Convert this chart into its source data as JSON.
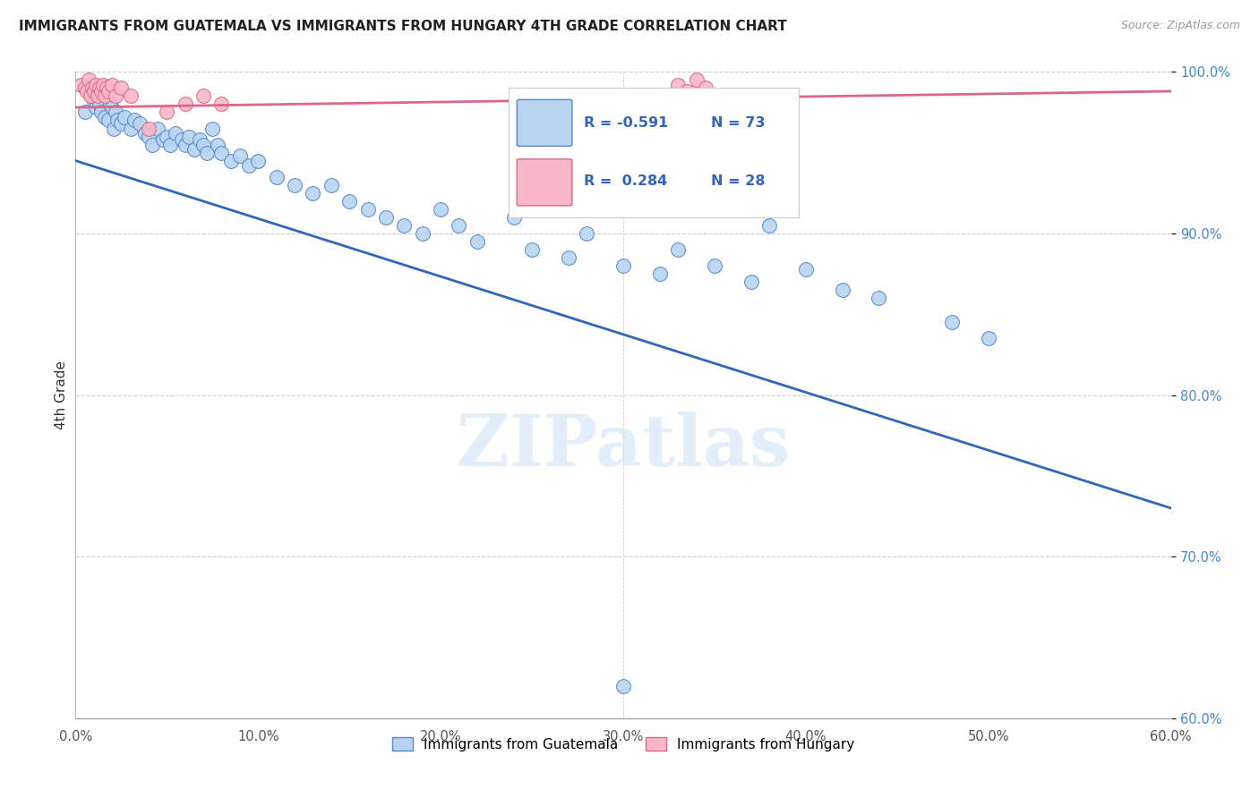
{
  "title": "IMMIGRANTS FROM GUATEMALA VS IMMIGRANTS FROM HUNGARY 4TH GRADE CORRELATION CHART",
  "source": "Source: ZipAtlas.com",
  "ylabel": "4th Grade",
  "xlim": [
    0.0,
    60.0
  ],
  "ylim": [
    60.0,
    100.0
  ],
  "xticks": [
    0.0,
    10.0,
    20.0,
    30.0,
    40.0,
    50.0,
    60.0
  ],
  "yticks": [
    60.0,
    70.0,
    80.0,
    90.0,
    100.0
  ],
  "blue_label": "Immigrants from Guatemala",
  "pink_label": "Immigrants from Hungary",
  "blue_R": -0.591,
  "blue_N": 73,
  "pink_R": 0.284,
  "pink_N": 28,
  "blue_color": "#b8d4f0",
  "blue_edge_color": "#5588cc",
  "blue_line_color": "#3366bb",
  "pink_color": "#f8b8c8",
  "pink_edge_color": "#dd6688",
  "pink_line_color": "#dd6688",
  "blue_line_x0": 0.0,
  "blue_line_y0": 94.5,
  "blue_line_x1": 60.0,
  "blue_line_y1": 73.0,
  "pink_line_x0": 0.0,
  "pink_line_y0": 97.8,
  "pink_line_x1": 60.0,
  "pink_line_y1": 98.8,
  "blue_dots": [
    [
      0.5,
      97.5
    ],
    [
      0.7,
      99.2
    ],
    [
      0.8,
      98.8
    ],
    [
      0.9,
      98.5
    ],
    [
      1.0,
      98.2
    ],
    [
      1.1,
      97.8
    ],
    [
      1.2,
      99.0
    ],
    [
      1.3,
      98.0
    ],
    [
      1.4,
      97.5
    ],
    [
      1.5,
      98.8
    ],
    [
      1.6,
      97.2
    ],
    [
      1.7,
      98.5
    ],
    [
      1.8,
      97.0
    ],
    [
      1.9,
      98.0
    ],
    [
      2.0,
      97.8
    ],
    [
      2.1,
      96.5
    ],
    [
      2.2,
      97.5
    ],
    [
      2.3,
      97.0
    ],
    [
      2.5,
      96.8
    ],
    [
      2.7,
      97.2
    ],
    [
      3.0,
      96.5
    ],
    [
      3.2,
      97.0
    ],
    [
      3.5,
      96.8
    ],
    [
      3.8,
      96.2
    ],
    [
      4.0,
      96.0
    ],
    [
      4.2,
      95.5
    ],
    [
      4.5,
      96.5
    ],
    [
      4.8,
      95.8
    ],
    [
      5.0,
      96.0
    ],
    [
      5.2,
      95.5
    ],
    [
      5.5,
      96.2
    ],
    [
      5.8,
      95.8
    ],
    [
      6.0,
      95.5
    ],
    [
      6.2,
      96.0
    ],
    [
      6.5,
      95.2
    ],
    [
      6.8,
      95.8
    ],
    [
      7.0,
      95.5
    ],
    [
      7.2,
      95.0
    ],
    [
      7.5,
      96.5
    ],
    [
      7.8,
      95.5
    ],
    [
      8.0,
      95.0
    ],
    [
      8.5,
      94.5
    ],
    [
      9.0,
      94.8
    ],
    [
      9.5,
      94.2
    ],
    [
      10.0,
      94.5
    ],
    [
      11.0,
      93.5
    ],
    [
      12.0,
      93.0
    ],
    [
      13.0,
      92.5
    ],
    [
      14.0,
      93.0
    ],
    [
      15.0,
      92.0
    ],
    [
      16.0,
      91.5
    ],
    [
      17.0,
      91.0
    ],
    [
      18.0,
      90.5
    ],
    [
      19.0,
      90.0
    ],
    [
      20.0,
      91.5
    ],
    [
      21.0,
      90.5
    ],
    [
      22.0,
      89.5
    ],
    [
      24.0,
      91.0
    ],
    [
      25.0,
      89.0
    ],
    [
      27.0,
      88.5
    ],
    [
      28.0,
      90.0
    ],
    [
      30.0,
      88.0
    ],
    [
      32.0,
      87.5
    ],
    [
      33.0,
      89.0
    ],
    [
      35.0,
      88.0
    ],
    [
      37.0,
      87.0
    ],
    [
      38.0,
      90.5
    ],
    [
      40.0,
      87.8
    ],
    [
      42.0,
      86.5
    ],
    [
      44.0,
      86.0
    ],
    [
      48.0,
      84.5
    ],
    [
      50.0,
      83.5
    ],
    [
      30.0,
      62.0
    ]
  ],
  "pink_dots": [
    [
      0.3,
      99.2
    ],
    [
      0.5,
      99.0
    ],
    [
      0.6,
      98.8
    ],
    [
      0.7,
      99.5
    ],
    [
      0.8,
      98.5
    ],
    [
      0.9,
      99.0
    ],
    [
      1.0,
      98.8
    ],
    [
      1.1,
      99.2
    ],
    [
      1.2,
      98.5
    ],
    [
      1.3,
      99.0
    ],
    [
      1.4,
      98.8
    ],
    [
      1.5,
      99.2
    ],
    [
      1.6,
      98.5
    ],
    [
      1.7,
      99.0
    ],
    [
      1.8,
      98.8
    ],
    [
      2.0,
      99.2
    ],
    [
      2.2,
      98.5
    ],
    [
      2.5,
      99.0
    ],
    [
      3.0,
      98.5
    ],
    [
      4.0,
      96.5
    ],
    [
      5.0,
      97.5
    ],
    [
      6.0,
      98.0
    ],
    [
      7.0,
      98.5
    ],
    [
      8.0,
      98.0
    ],
    [
      33.0,
      99.2
    ],
    [
      33.5,
      98.8
    ],
    [
      34.0,
      99.5
    ],
    [
      34.5,
      99.0
    ]
  ]
}
